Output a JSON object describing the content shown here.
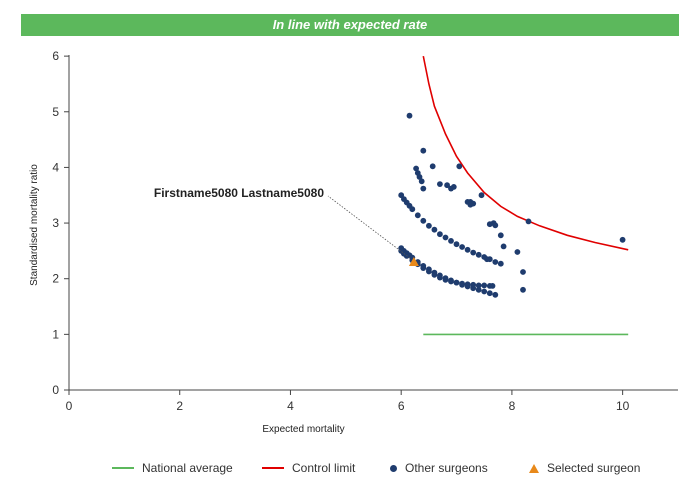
{
  "banner": {
    "text": "In line with expected rate",
    "color": "#5cb85c"
  },
  "chart_data": {
    "type": "scatter",
    "xlabel": "Expected mortality",
    "ylabel": "Standardised mortality ratio",
    "xlim": [
      0,
      11
    ],
    "ylim": [
      0,
      6.2
    ],
    "xticks": [
      0,
      2,
      4,
      6,
      8,
      10
    ],
    "yticks": [
      0,
      1,
      2,
      3,
      4,
      5,
      6
    ],
    "grid": false,
    "legend_position": "bottom",
    "series": [
      {
        "name": "National average",
        "kind": "line",
        "color": "#5cb85c",
        "x": [
          6.4,
          10.1
        ],
        "y": [
          1.0,
          1.0
        ]
      },
      {
        "name": "Control limit",
        "kind": "line",
        "color": "#e00000",
        "x": [
          6.4,
          6.5,
          6.6,
          6.8,
          7.0,
          7.2,
          7.5,
          7.8,
          8.1,
          8.5,
          9.0,
          9.5,
          10.1
        ],
        "y": [
          6.0,
          5.5,
          5.1,
          4.6,
          4.2,
          3.9,
          3.55,
          3.3,
          3.12,
          2.95,
          2.78,
          2.65,
          2.52
        ]
      },
      {
        "name": "Other surgeons",
        "kind": "scatter",
        "color": "#1f3c6e",
        "x": [
          6.15,
          6.4,
          6.57,
          6.95,
          7.05,
          6.83,
          7.25,
          7.3,
          7.45,
          6.4,
          6.27,
          6.3,
          6.33,
          6.37,
          6.0,
          6.05,
          6.1,
          6.15,
          6.2,
          6.3,
          6.4,
          6.5,
          6.6,
          6.7,
          6.8,
          6.9,
          7.0,
          7.1,
          7.2,
          7.3,
          7.4,
          7.5,
          7.6,
          7.7,
          7.8,
          6.0,
          6.05,
          6.1,
          6.15,
          6.2,
          6.3,
          6.4,
          6.5,
          6.6,
          6.7,
          6.8,
          6.9,
          7.0,
          7.1,
          7.2,
          7.3,
          7.4,
          7.5,
          7.6,
          7.7,
          6.0,
          6.05,
          6.1,
          6.2,
          6.3,
          6.4,
          6.5,
          6.6,
          6.7,
          6.8,
          6.9,
          7.0,
          7.1,
          7.2,
          7.3,
          7.4,
          7.5,
          7.6,
          6.7,
          6.9,
          7.2,
          7.25,
          7.6,
          7.8,
          8.1,
          8.2,
          8.3,
          10.0,
          8.2,
          7.65,
          7.85,
          7.67,
          7.7,
          7.55
        ],
        "y": [
          4.93,
          4.3,
          4.02,
          3.65,
          4.02,
          3.68,
          3.38,
          3.35,
          3.5,
          3.62,
          3.98,
          3.9,
          3.83,
          3.75,
          3.5,
          3.43,
          3.37,
          3.31,
          3.25,
          3.14,
          3.04,
          2.95,
          2.88,
          2.8,
          2.74,
          2.68,
          2.62,
          2.57,
          2.52,
          2.47,
          2.43,
          2.39,
          2.35,
          2.3,
          2.27,
          2.55,
          2.5,
          2.46,
          2.42,
          2.38,
          2.3,
          2.23,
          2.17,
          2.11,
          2.06,
          2.01,
          1.97,
          1.93,
          1.89,
          1.86,
          1.83,
          1.8,
          1.77,
          1.74,
          1.71,
          2.5,
          2.45,
          2.41,
          2.33,
          2.26,
          2.19,
          2.13,
          2.07,
          2.02,
          1.98,
          1.95,
          1.93,
          1.91,
          1.9,
          1.89,
          1.88,
          1.88,
          1.87,
          3.7,
          3.62,
          3.38,
          3.33,
          2.98,
          2.78,
          2.48,
          2.12,
          3.03,
          2.7,
          1.8,
          1.87,
          2.58,
          3.0,
          2.96,
          2.35
        ]
      },
      {
        "name": "Selected surgeon",
        "kind": "scatter",
        "marker": "triangle",
        "color": "#e8891a",
        "x": [
          6.23
        ],
        "y": [
          2.3
        ]
      }
    ],
    "annotations": [
      {
        "text": "Firstname5080 Lastname5080",
        "x": 6.23,
        "y": 2.3
      }
    ]
  },
  "legend": {
    "items": [
      {
        "label": "National average",
        "symbol": "line",
        "color": "#5cb85c"
      },
      {
        "label": "Control limit",
        "symbol": "line",
        "color": "#e00000"
      },
      {
        "label": "Other surgeons",
        "symbol": "dot",
        "color": "#1f3c6e"
      },
      {
        "label": "Selected surgeon",
        "symbol": "triangle",
        "color": "#e8891a"
      }
    ]
  }
}
